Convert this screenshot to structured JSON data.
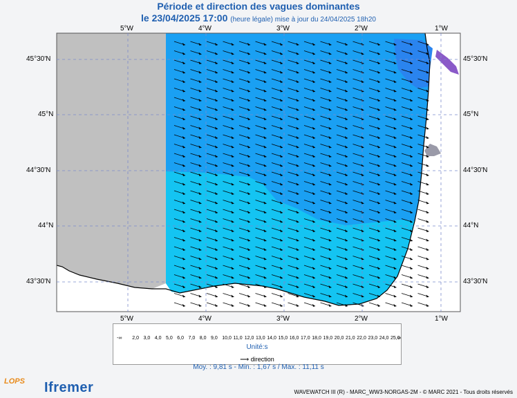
{
  "title": "Période et direction des vagues dominantes",
  "subtitle_date": "le 23/04/2025 17:00",
  "subtitle_rest": "(heure légale) mise à jour du 24/04/2025 18h20",
  "lon_labels": [
    "5°W",
    "4°W",
    "3°W",
    "2°W",
    "1°W"
  ],
  "lat_labels": [
    "45°30'N",
    "45°N",
    "44°30'N",
    "44°N",
    "43°30'N"
  ],
  "colorbar": {
    "labels": [
      "-∞",
      "2,0",
      "3,0",
      "4,0",
      "5,0",
      "6,0",
      "7,0",
      "8,0",
      "9,0",
      "10,0",
      "11,0",
      "12,0",
      "13,0",
      "14,0",
      "15,0",
      "16,0",
      "17,0",
      "18,0",
      "19,0",
      "20,0",
      "21,0",
      "22,0",
      "23,0",
      "24,0",
      "25,0",
      "∞"
    ],
    "colors": [
      "#b08ec8",
      "#9a6fc0",
      "#7a2fd8",
      "#5a3be8",
      "#3a55f0",
      "#2a78f0",
      "#1e95f2",
      "#16b2f4",
      "#11c9f0",
      "#12dede",
      "#18e6b0",
      "#3de57a",
      "#6ee24a",
      "#a6e63a",
      "#d8ec30",
      "#f2e630",
      "#f5cc2a",
      "#f5ad24",
      "#f38e1e",
      "#f06c18",
      "#ec4a14",
      "#e32a12",
      "#d31212",
      "#bb0a0a"
    ],
    "unit": "Unité:s"
  },
  "direction_label": "direction",
  "stats": "Moy. : 9,81 s   -   Min. : 1,67 s / Max. : 11,11 s",
  "footer": "WAVEWATCH III (R) - MARC_WW3-NORGAS-2M - © MARC 2021 - Tous droits réservés",
  "logo_ifremer": "Ifremer",
  "logo_lops": "LOPS",
  "colors": {
    "title": "#1f5fb0",
    "land": "#ffffff",
    "nodata": "#c0c0c0",
    "sea_main": "#1aa0f3",
    "sea_south": "#14c4f2",
    "sea_coast": "#2a84ef"
  }
}
